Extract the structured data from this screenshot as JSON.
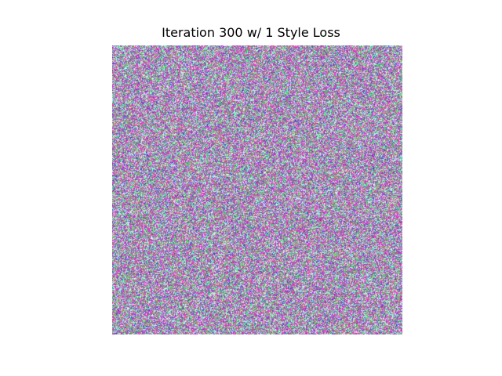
{
  "figure": {
    "title": "Iteration 300 w/ 1 Style Loss"
  },
  "image": {
    "content": "generated-noise-texture",
    "palette": [
      "#ff00ff",
      "#00ff66",
      "#66ffee",
      "#3333cc",
      "#ffffff",
      "#999999",
      "#cc3399"
    ]
  }
}
